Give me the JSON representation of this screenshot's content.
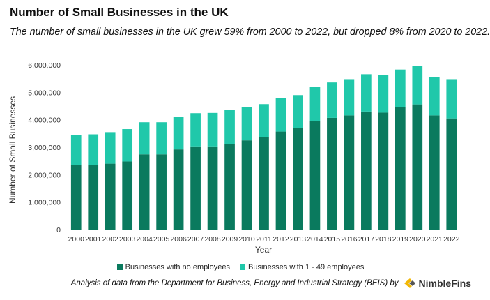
{
  "header": {
    "title": "Number of Small Businesses in the UK",
    "subtitle": "The number of small businesses in the UK grew 59% from 2000 to 2022, but dropped 8% from 2020 to 2022."
  },
  "footer": {
    "source": "Analysis of data from the Department for Business, Energy and Industrial Strategy (BEIS) by",
    "brand": "NimbleFins",
    "brand_colors": [
      "#f2b705",
      "#555555"
    ]
  },
  "chart_data": {
    "type": "bar",
    "stacked": true,
    "xlabel": "Year",
    "ylabel": "Number of Small Businesses",
    "ylim": [
      0,
      6000000
    ],
    "yticks": [
      0,
      1000000,
      2000000,
      3000000,
      4000000,
      5000000,
      6000000
    ],
    "ytick_labels": [
      "0",
      "1,000,000",
      "2,000,000",
      "3,000,000",
      "4,000,000",
      "5,000,000",
      "6,000,000"
    ],
    "grid": false,
    "legend_position": "bottom",
    "categories": [
      "2000",
      "2001",
      "2002",
      "2003",
      "2004",
      "2005",
      "2006",
      "2007",
      "2008",
      "2009",
      "2010",
      "2011",
      "2012",
      "2013",
      "2014",
      "2015",
      "2016",
      "2017",
      "2018",
      "2019",
      "2020",
      "2021",
      "2022"
    ],
    "series": [
      {
        "name": "Businesses with no employees",
        "color": "#0a7a5e",
        "values": [
          2340000,
          2340000,
          2400000,
          2480000,
          2740000,
          2740000,
          2920000,
          3030000,
          3030000,
          3120000,
          3250000,
          3360000,
          3570000,
          3690000,
          3950000,
          4070000,
          4160000,
          4300000,
          4260000,
          4450000,
          4560000,
          4160000,
          4050000
        ]
      },
      {
        "name": "Businesses with 1 - 49 employees",
        "color": "#20c8aa",
        "values": [
          1100000,
          1130000,
          1150000,
          1180000,
          1170000,
          1170000,
          1190000,
          1210000,
          1220000,
          1230000,
          1210000,
          1210000,
          1230000,
          1210000,
          1260000,
          1290000,
          1320000,
          1360000,
          1370000,
          1380000,
          1400000,
          1400000,
          1430000
        ]
      }
    ]
  }
}
